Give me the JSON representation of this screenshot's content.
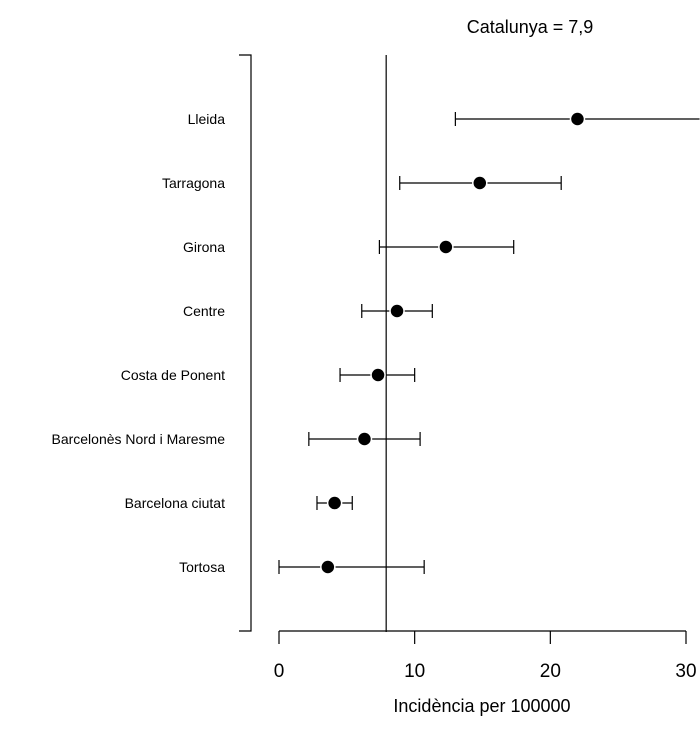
{
  "chart_data": {
    "type": "forest",
    "annotation": "Catalunya = 7,9",
    "reference_value": 7.9,
    "xlabel": "Incidència per 100000",
    "xlim": [
      0,
      30
    ],
    "xticks": [
      0,
      10,
      20,
      30
    ],
    "rows": [
      {
        "label": "Lleida",
        "estimate": 22.0,
        "lower": 13.0,
        "upper": 31.0
      },
      {
        "label": "Tarragona",
        "estimate": 14.8,
        "lower": 8.9,
        "upper": 20.8
      },
      {
        "label": "Girona",
        "estimate": 12.3,
        "lower": 7.4,
        "upper": 17.3
      },
      {
        "label": "Centre",
        "estimate": 8.7,
        "lower": 6.1,
        "upper": 11.3
      },
      {
        "label": "Costa de Ponent",
        "estimate": 7.3,
        "lower": 4.5,
        "upper": 10.0
      },
      {
        "label": "Barcelonès Nord i Maresme",
        "estimate": 6.3,
        "lower": 2.2,
        "upper": 10.4
      },
      {
        "label": "Barcelona ciutat",
        "estimate": 4.1,
        "lower": 2.8,
        "upper": 5.4
      },
      {
        "label": "Tortosa",
        "estimate": 3.6,
        "lower": 0.0,
        "upper": 10.7
      }
    ]
  }
}
